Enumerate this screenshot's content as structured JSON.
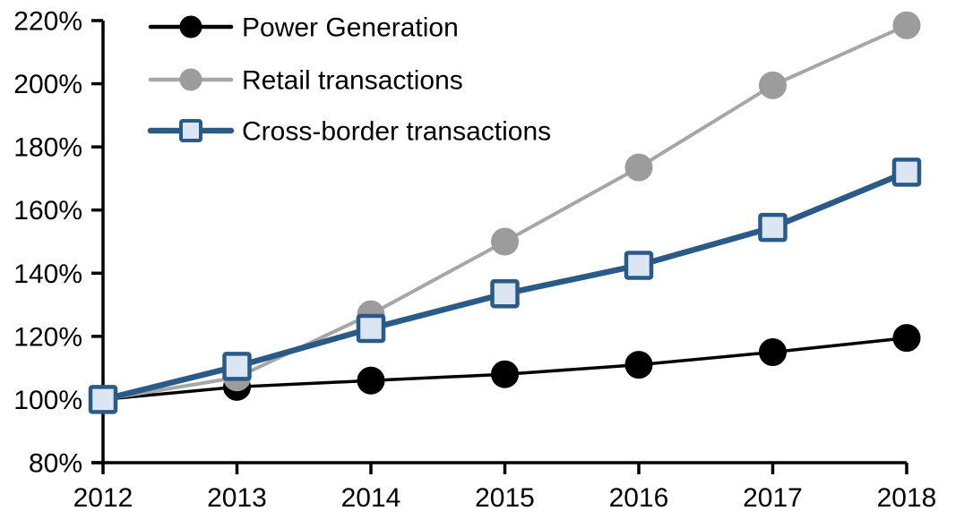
{
  "chart_data": {
    "type": "line",
    "title": "",
    "xlabel": "",
    "ylabel": "",
    "grid": false,
    "legend_position": "top-left",
    "x": [
      2012,
      2013,
      2014,
      2015,
      2016,
      2017,
      2018
    ],
    "xtick_labels": [
      "2012",
      "2013",
      "2014",
      "2015",
      "2016",
      "2017",
      "2018"
    ],
    "ylim": [
      80,
      220
    ],
    "ytick_step": 20,
    "ytick_labels": [
      "80%",
      "100%",
      "120%",
      "140%",
      "160%",
      "180%",
      "200%",
      "220%"
    ],
    "axis_color": "#000000",
    "series": [
      {
        "name": "Power Generation",
        "values": [
          100,
          104,
          106,
          108,
          111,
          115,
          119.5
        ],
        "color": "#000000",
        "marker": "circle",
        "marker_fill": "#000000",
        "marker_stroke": "#000000",
        "line_width": 3.5
      },
      {
        "name": "Retail transactions",
        "values": [
          100,
          107,
          127,
          150,
          173.5,
          199.5,
          218.5
        ],
        "color": "#a6a6a6",
        "marker": "circle",
        "marker_fill": "#9c9c9c",
        "marker_stroke": "#9c9c9c",
        "line_width": 4
      },
      {
        "name": "Cross-border transactions",
        "values": [
          100,
          110.5,
          122.5,
          133.5,
          142.5,
          154.5,
          172
        ],
        "color": "#2a5a87",
        "marker": "square",
        "marker_fill": "#dce6f2",
        "marker_stroke": "#2a5a87",
        "line_width": 6.5
      }
    ]
  }
}
